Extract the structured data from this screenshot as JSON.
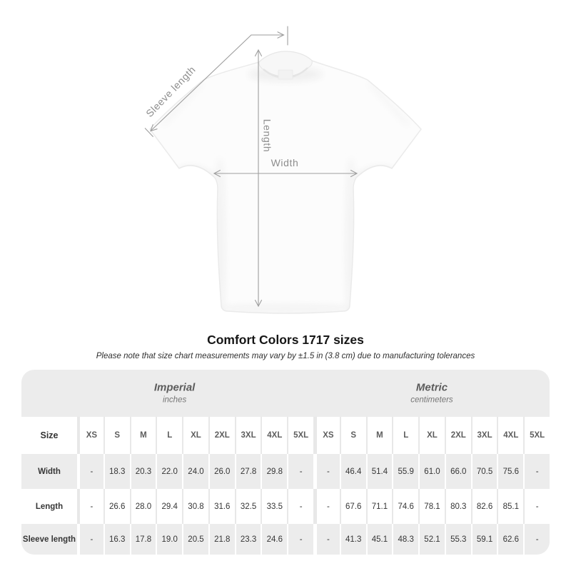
{
  "page": {
    "title": "Comfort Colors 1717 sizes",
    "subtitle": "Please note that size chart measurements may vary by ±1.5 in (3.8 cm) due to manufacturing tolerances"
  },
  "diagram": {
    "width_label": "Width",
    "length_label": "Length",
    "sleeve_label": "Sleeve length"
  },
  "table": {
    "corner_label": "Size",
    "sections": [
      {
        "name": "Imperial",
        "unit": "inches"
      },
      {
        "name": "Metric",
        "unit": "centimeters"
      }
    ],
    "sizes": [
      "XS",
      "S",
      "M",
      "L",
      "XL",
      "2XL",
      "3XL",
      "4XL",
      "5XL"
    ],
    "rows": [
      {
        "label": "Width",
        "imperial": [
          "-",
          "18.3",
          "20.3",
          "22.0",
          "24.0",
          "26.0",
          "27.8",
          "29.8",
          "-"
        ],
        "metric": [
          "-",
          "46.4",
          "51.4",
          "55.9",
          "61.0",
          "66.0",
          "70.5",
          "75.6",
          "-"
        ]
      },
      {
        "label": "Length",
        "imperial": [
          "-",
          "26.6",
          "28.0",
          "29.4",
          "30.8",
          "31.6",
          "32.5",
          "33.5",
          "-"
        ],
        "metric": [
          "-",
          "67.6",
          "71.1",
          "74.6",
          "78.1",
          "80.3",
          "82.6",
          "85.1",
          "-"
        ]
      },
      {
        "label": "Sleeve length",
        "imperial": [
          "-",
          "16.3",
          "17.8",
          "19.0",
          "20.5",
          "21.8",
          "23.3",
          "24.6",
          "-"
        ],
        "metric": [
          "-",
          "41.3",
          "45.1",
          "48.3",
          "52.1",
          "55.3",
          "59.1",
          "62.6",
          "-"
        ]
      }
    ]
  },
  "colors": {
    "band_gray": "#ececec",
    "row_gray": "#ececec",
    "gap_line_gray": "#e8e8e8",
    "measure_line": "#9e9e9e",
    "measure_text": "#8d8d8d",
    "title_text": "#161616"
  },
  "chart_data": {
    "type": "table",
    "title": "Comfort Colors 1717 sizes",
    "note": "Please note that size chart measurements may vary by ±1.5 in (3.8 cm) due to manufacturing tolerances",
    "column_groups": [
      {
        "name": "Imperial",
        "unit": "inches",
        "columns": [
          "XS",
          "S",
          "M",
          "L",
          "XL",
          "2XL",
          "3XL",
          "4XL",
          "5XL"
        ]
      },
      {
        "name": "Metric",
        "unit": "centimeters",
        "columns": [
          "XS",
          "S",
          "M",
          "L",
          "XL",
          "2XL",
          "3XL",
          "4XL",
          "5XL"
        ]
      }
    ],
    "row_header": "Size",
    "rows": [
      {
        "measurement": "Width",
        "imperial_in": [
          null,
          18.3,
          20.3,
          22.0,
          24.0,
          26.0,
          27.8,
          29.8,
          null
        ],
        "metric_cm": [
          null,
          46.4,
          51.4,
          55.9,
          61.0,
          66.0,
          70.5,
          75.6,
          null
        ]
      },
      {
        "measurement": "Length",
        "imperial_in": [
          null,
          26.6,
          28.0,
          29.4,
          30.8,
          31.6,
          32.5,
          33.5,
          null
        ],
        "metric_cm": [
          null,
          67.6,
          71.1,
          74.6,
          78.1,
          80.3,
          82.6,
          85.1,
          null
        ]
      },
      {
        "measurement": "Sleeve length",
        "imperial_in": [
          null,
          16.3,
          17.8,
          19.0,
          20.5,
          21.8,
          23.3,
          24.6,
          null
        ],
        "metric_cm": [
          null,
          41.3,
          45.1,
          48.3,
          52.1,
          55.3,
          59.1,
          62.6,
          null
        ]
      }
    ]
  }
}
